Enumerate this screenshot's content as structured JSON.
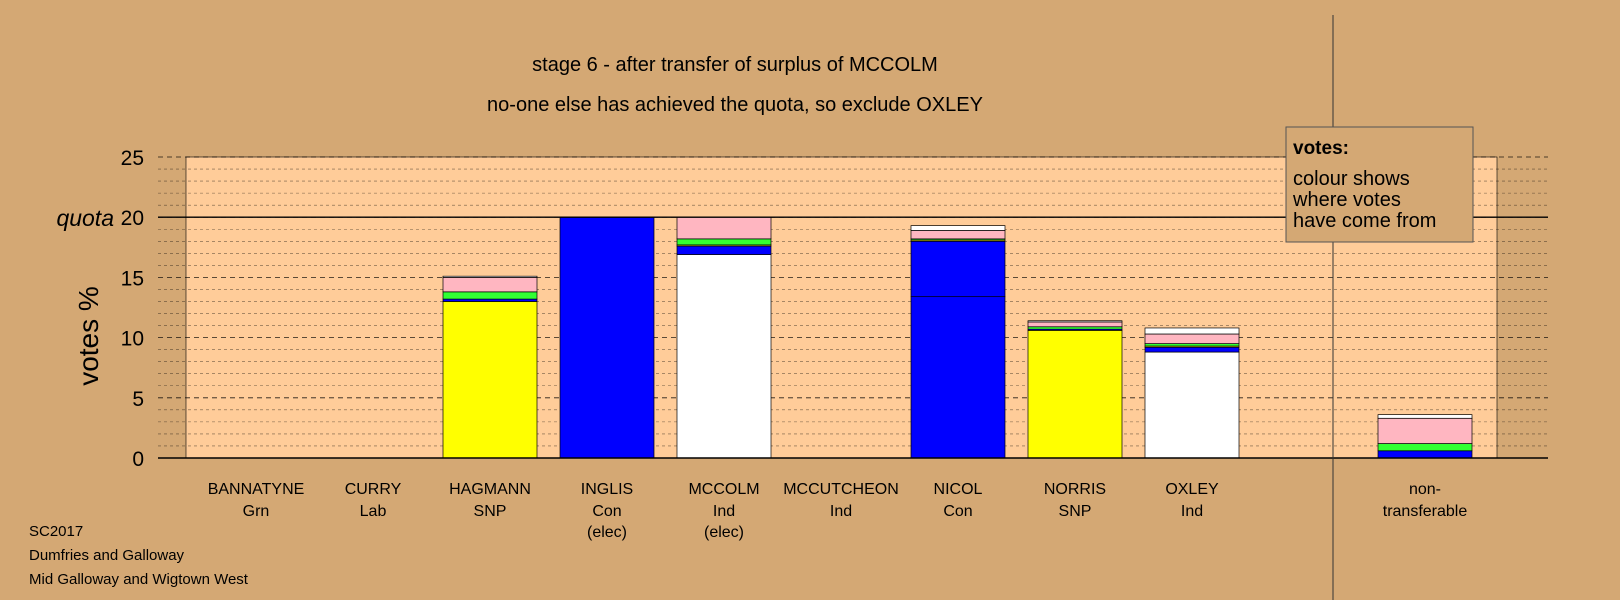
{
  "chart_data": {
    "type": "bar",
    "stacked": true,
    "title": "stage 6 - after transfer of surplus of MCCOLM",
    "subtitle": "no-one else has achieved the quota, so exclude OXLEY",
    "ylabel": "votes %",
    "ylim": [
      0,
      25
    ],
    "yticks": [
      "0",
      "5",
      "10",
      "15",
      "20",
      "25"
    ],
    "quota_label": "quota",
    "quota": 20,
    "grid": true,
    "categories": [
      {
        "name": "BANNATYNE",
        "party": "Grn",
        "note": ""
      },
      {
        "name": "CURRY",
        "party": "Lab",
        "note": ""
      },
      {
        "name": "HAGMANN",
        "party": "SNP",
        "note": ""
      },
      {
        "name": "INGLIS",
        "party": "Con",
        "note": "(elec)"
      },
      {
        "name": "MCCOLM",
        "party": "Ind",
        "note": "(elec)"
      },
      {
        "name": "MCCUTCHEON",
        "party": "Ind",
        "note": ""
      },
      {
        "name": "NICOL",
        "party": "Con",
        "note": ""
      },
      {
        "name": "NORRIS",
        "party": "SNP",
        "note": ""
      },
      {
        "name": "OXLEY",
        "party": "Ind",
        "note": ""
      },
      {
        "name": "non-",
        "party": "transferable",
        "note": ""
      }
    ],
    "stacks": [
      [],
      [],
      [
        {
          "color": "#ffff00",
          "value": 13.0
        },
        {
          "color": "#0000ff",
          "value": 0.2
        },
        {
          "color": "#33ff33",
          "value": 0.6
        },
        {
          "color": "#ffb6c1",
          "value": 1.2
        },
        {
          "color": "#ffffff",
          "value": 0.1
        }
      ],
      [
        {
          "color": "#0000ff",
          "value": 20.0
        }
      ],
      [
        {
          "color": "#ffffff",
          "value": 16.9
        },
        {
          "color": "#0000ff",
          "value": 0.7
        },
        {
          "color": "#ffff00",
          "value": 0.1
        },
        {
          "color": "#33ff33",
          "value": 0.5
        },
        {
          "color": "#ffb6c1",
          "value": 1.8
        }
      ],
      [],
      [
        {
          "color": "#0000ff",
          "value": 13.4
        },
        {
          "color": "#0000ff",
          "value": 4.6
        },
        {
          "color": "#ffff00",
          "value": 0.1
        },
        {
          "color": "#33ff33",
          "value": 0.1
        },
        {
          "color": "#ffb6c1",
          "value": 0.7
        },
        {
          "color": "#ffffff",
          "value": 0.4
        }
      ],
      [
        {
          "color": "#ffff00",
          "value": 10.6
        },
        {
          "color": "#0000ff",
          "value": 0.1
        },
        {
          "color": "#33ff33",
          "value": 0.2
        },
        {
          "color": "#ffb6c1",
          "value": 0.4
        },
        {
          "color": "#ffffff",
          "value": 0.1
        }
      ],
      [
        {
          "color": "#ffffff",
          "value": 8.8
        },
        {
          "color": "#0000ff",
          "value": 0.4
        },
        {
          "color": "#ffff00",
          "value": 0.1
        },
        {
          "color": "#33ff33",
          "value": 0.2
        },
        {
          "color": "#ffb6c1",
          "value": 0.8
        },
        {
          "color": "#ffffff",
          "value": 0.5
        }
      ],
      [
        {
          "color": "#0000ff",
          "value": 0.6
        },
        {
          "color": "#33ff33",
          "value": 0.6
        },
        {
          "color": "#ffb6c1",
          "value": 2.1
        },
        {
          "color": "#ffffff",
          "value": 0.3
        }
      ]
    ],
    "legend": {
      "title": "votes:",
      "lines": [
        "colour shows",
        "where votes",
        "have come from"
      ],
      "placement": "top-right"
    },
    "colors": {
      "background": "#d4a874",
      "plot_background": "#ffcc99"
    }
  },
  "footer": [
    "SC2017",
    "Dumfries and Galloway",
    "Mid Galloway and Wigtown West"
  ]
}
